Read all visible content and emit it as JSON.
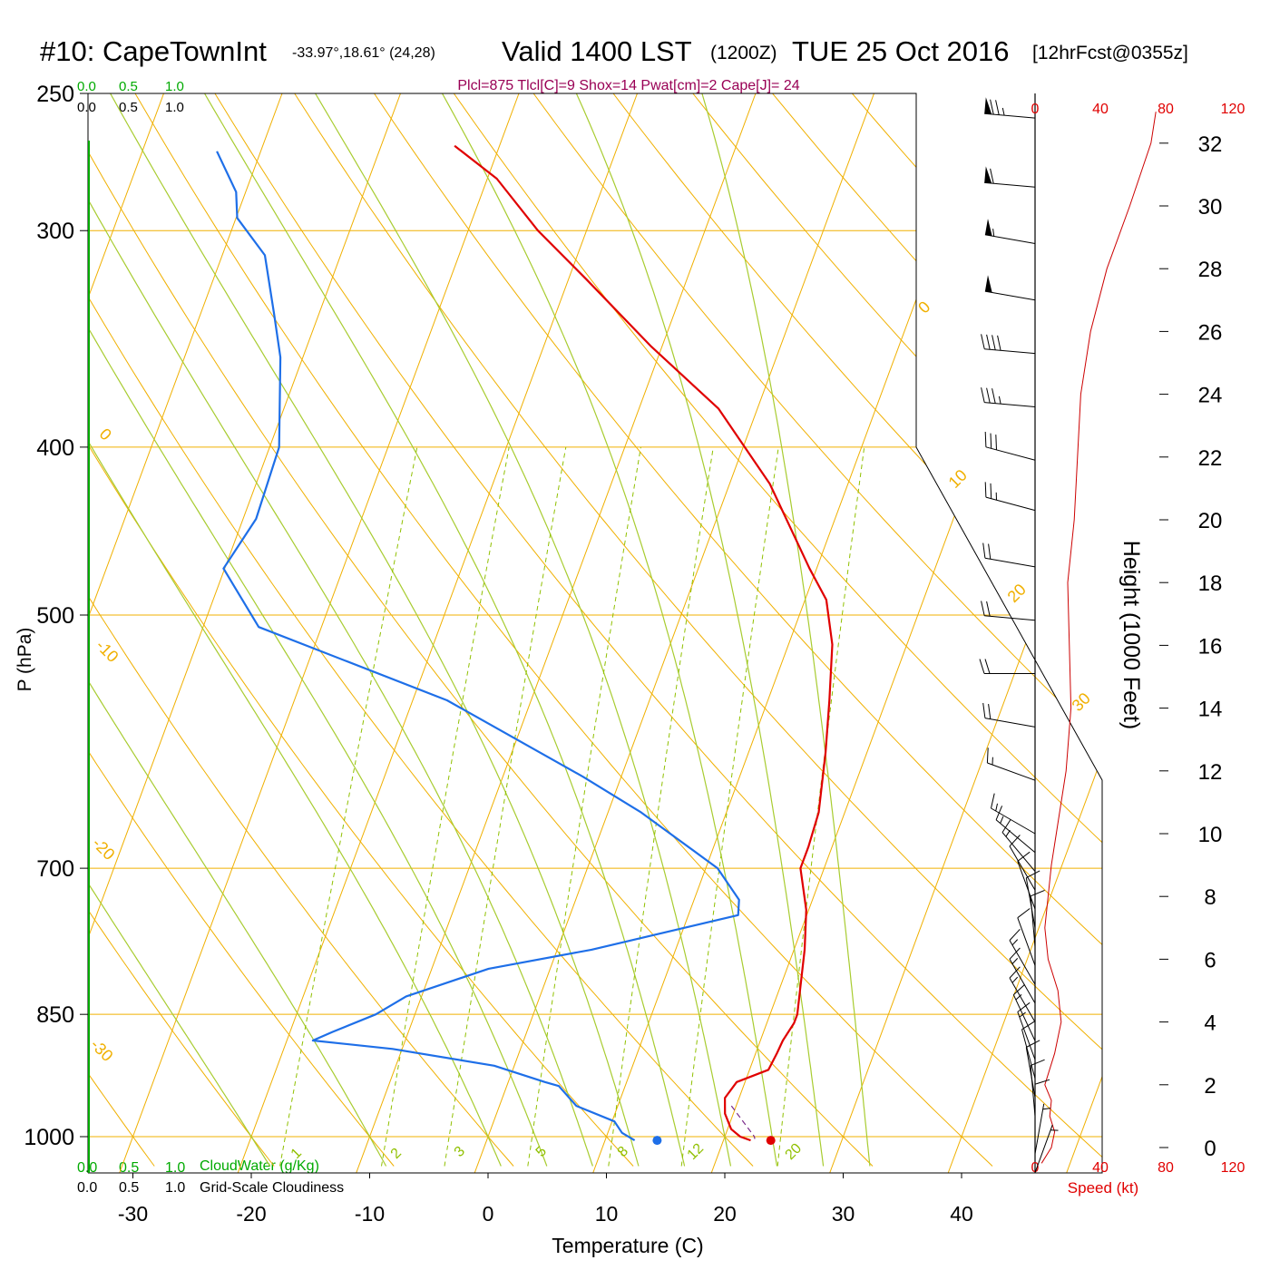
{
  "header": {
    "station": "#10: CapeTownInt",
    "coords": "-33.97°,18.61° (24,28)",
    "valid": "Valid 1400 LST",
    "utc": "(1200Z)",
    "date": "TUE 25 Oct 2016",
    "forecast": "[12hrFcst@0355z]"
  },
  "indices": "Plcl=875 Tlcl[C]=9 Shox=14 Pwat[cm]=2 Cape[J]= 24",
  "cloud_scale": {
    "top_green": [
      "0.0",
      "0.5",
      "1.0"
    ],
    "top_black": [
      "0.0",
      "0.5",
      "1.0"
    ],
    "bottom_green": [
      "0.0",
      "0.5",
      "1.0"
    ],
    "bottom_black": [
      "0.0",
      "0.5",
      "1.0"
    ],
    "cloudwater_label": "CloudWater (g/Kg)",
    "cloudiness_label": "Grid-Scale Cloudiness"
  },
  "colors": {
    "temperature": "#e00000",
    "dewpoint": "#1e6fe8",
    "isobars_isotherms": "#f0b000",
    "mixing_ratio": "#90c000",
    "adiabats": "#a8cc30",
    "wind_speed": "#cc0000",
    "indices_text": "#990055",
    "cloud_green": "#00aa00"
  },
  "chart_data": {
    "type": "line",
    "subtype": "skew-T log-P sounding",
    "xlabel": "Temperature (C)",
    "ylabel": "P (hPa)",
    "right_axis_label": "Height (1000 Feet)",
    "speed_axis_label": "Speed (kt)",
    "x_ticks": [
      -30,
      -20,
      -10,
      0,
      10,
      20,
      30,
      40
    ],
    "pressure_ticks": [
      250,
      300,
      400,
      500,
      700,
      850,
      1000
    ],
    "height_ticks": [
      0,
      2,
      4,
      6,
      8,
      10,
      12,
      14,
      16,
      18,
      20,
      22,
      24,
      26,
      28,
      30,
      32
    ],
    "speed_ticks": [
      0,
      40,
      80,
      120
    ],
    "isotherm_labels": [
      {
        "t": -30,
        "label": "-30"
      },
      {
        "t": -20,
        "label": "-20"
      },
      {
        "t": -10,
        "label": "-10"
      },
      {
        "t": 0,
        "label": "0"
      },
      {
        "t": 10,
        "label": "10"
      },
      {
        "t": 20,
        "label": "20"
      },
      {
        "t": 30,
        "label": "30"
      },
      {
        "t": 0,
        "label": "0",
        "upper": true
      }
    ],
    "mixing_ratio_labels": [
      "1",
      "2",
      "3",
      "5",
      "8",
      "12",
      "20"
    ],
    "series": [
      {
        "name": "Temperature",
        "x": [
          22.3,
          21.3,
          20.3,
          19.3,
          18.8,
          19.3,
          21.6,
          21.8,
          21.9,
          22.3,
          22.3,
          20.9,
          19.8,
          18.0,
          18.0,
          17.8,
          16.5,
          15.2,
          13.7,
          11.8,
          9.4,
          3.4,
          -3.3,
          -10.9,
          -18.5,
          -24.1,
          -29.2,
          -33.8
        ],
        "y": [
          1005,
          1000,
          990,
          970,
          950,
          930,
          915,
          895,
          880,
          860,
          850,
          780,
          740,
          700,
          680,
          650,
          600,
          560,
          520,
          490,
          470,
          420,
          380,
          350,
          320,
          300,
          280,
          268
        ]
      },
      {
        "name": "Dewpoint",
        "x": [
          12.5,
          11.2,
          10.2,
          6.5,
          4.4,
          3.1,
          -1.7,
          -10.8,
          -17.8,
          -16.4,
          -13.3,
          -11.3,
          -9.3,
          -5.2,
          2.9,
          14.2,
          13.8,
          11.0,
          2.8,
          -3.2,
          -17.1,
          -35.3,
          -40.1,
          -38.9,
          -39.2,
          -41.9,
          -43.8,
          -46.4,
          -49.9,
          -50.8,
          -53.7
        ],
        "y": [
          1005,
          995,
          980,
          960,
          935,
          930,
          910,
          890,
          880,
          870,
          850,
          830,
          820,
          800,
          780,
          745,
          730,
          700,
          650,
          620,
          560,
          508,
          470,
          440,
          400,
          355,
          335,
          310,
          295,
          285,
          270
        ]
      }
    ],
    "surface_points": [
      {
        "name": "surface dewpoint",
        "x": 14.4,
        "y": 1005,
        "color": "#1e6fe8"
      },
      {
        "name": "surface temperature",
        "x": 24.0,
        "y": 1005,
        "color": "#e00000"
      }
    ],
    "wind_speed_profile": {
      "height_kft": [
        -0.5,
        0.0,
        0.5,
        1.0,
        1.5,
        2.0,
        3.0,
        4.0,
        5.0,
        6.0,
        7.0,
        8.0,
        9.0,
        10.0,
        12.0,
        14.0,
        16.0,
        18.0,
        20.0,
        22.0,
        24.0,
        26.0,
        28.0,
        30.0,
        32.0,
        33.0
      ],
      "speed_kt": [
        4,
        10,
        12,
        9,
        10,
        6,
        12,
        16,
        14,
        8,
        6,
        8,
        10,
        13,
        19,
        22,
        21,
        20,
        24,
        26,
        28,
        34,
        44,
        58,
        71,
        74
      ]
    },
    "wind_barbs": {
      "height_kft": [
        32.8,
        30.6,
        28.8,
        27.0,
        25.3,
        23.6,
        21.9,
        20.3,
        18.5,
        16.8,
        15.1,
        13.4,
        11.7,
        10.0,
        9.4,
        8.8,
        8.2,
        7.6,
        7.0,
        6.4,
        5.8,
        5.2,
        4.6,
        4.0,
        3.4,
        2.8,
        2.2,
        1.6,
        1.0,
        0.4,
        -0.2,
        -0.8
      ],
      "dir_deg": [
        275,
        275,
        280,
        280,
        275,
        275,
        285,
        285,
        280,
        275,
        270,
        280,
        290,
        300,
        310,
        320,
        330,
        340,
        350,
        355,
        340,
        330,
        330,
        330,
        335,
        340,
        345,
        350,
        355,
        0,
        10,
        20
      ],
      "speed_kt": [
        75,
        62,
        55,
        48,
        40,
        35,
        30,
        25,
        22,
        20,
        20,
        20,
        15,
        15,
        15,
        13,
        12,
        10,
        8,
        10,
        12,
        15,
        15,
        15,
        15,
        15,
        12,
        10,
        10,
        8,
        6,
        5
      ]
    }
  }
}
